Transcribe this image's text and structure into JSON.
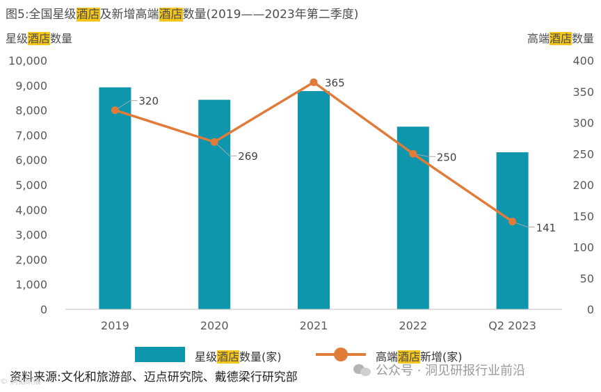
{
  "header": {
    "title_parts": [
      "图5:全国星级",
      "酒店",
      "及新增高端",
      "酒店",
      "数量(2019——2023年第二季度)"
    ]
  },
  "axis_labels": {
    "left_parts": [
      "星级",
      "酒店",
      "数量"
    ],
    "right_parts": [
      "高端",
      "酒店",
      "数量"
    ]
  },
  "legend": {
    "bar_label_parts": [
      "星级",
      "酒店",
      "数量(家)"
    ],
    "line_label_parts": [
      "高端",
      "酒店",
      "新增(家)"
    ]
  },
  "footer": {
    "source": "资料来源:文化和旅游部、迈点研究院、戴德梁行研究部",
    "watermark": "公众号 · 洞见研报行业前沿",
    "corner_mark": "© 洞见研报"
  },
  "colors": {
    "bar": "#0e96ad",
    "line": "#e07b39",
    "highlight": "#f5c518",
    "axis": "#bfbfbf",
    "text": "#595959"
  },
  "chart_data": {
    "type": "bar+line",
    "title": "全国星级酒店及新增高端酒店数量(2019——2023年第二季度)",
    "categories": [
      "2019",
      "2020",
      "2021",
      "2022",
      "Q2 2023"
    ],
    "series": [
      {
        "name": "星级酒店数量(家)",
        "type": "bar",
        "axis": "left",
        "values": [
          8920,
          8420,
          8770,
          7340,
          6310
        ]
      },
      {
        "name": "高端酒店新增(家)",
        "type": "line",
        "axis": "right",
        "values": [
          320,
          269,
          365,
          250,
          141
        ],
        "labels": [
          "320",
          "269",
          "365",
          "250",
          "141"
        ]
      }
    ],
    "y_left": {
      "label": "星级酒店数量",
      "lim": [
        0,
        10000
      ],
      "ticks": [
        0,
        1000,
        2000,
        3000,
        4000,
        5000,
        6000,
        7000,
        8000,
        9000,
        10000
      ],
      "tick_labels": [
        "0",
        "1,000",
        "2,000",
        "3,000",
        "4,000",
        "5,000",
        "6,000",
        "7,000",
        "8,000",
        "9,000",
        "10,000"
      ]
    },
    "y_right": {
      "label": "高端酒店数量",
      "lim": [
        0,
        400
      ],
      "ticks": [
        0,
        50,
        100,
        150,
        200,
        250,
        300,
        350,
        400
      ],
      "tick_labels": [
        "0",
        "50",
        "100",
        "150",
        "200",
        "250",
        "300",
        "350",
        "400"
      ]
    },
    "grid": false,
    "legend_position": "bottom"
  }
}
